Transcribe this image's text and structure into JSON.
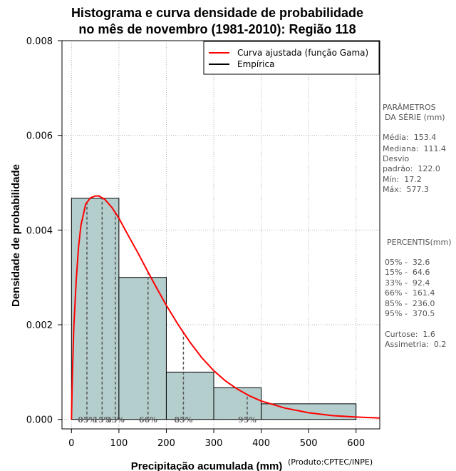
{
  "chart_data": {
    "type": "bar",
    "title_line1": "Histograma e curva densidade de probabilidade",
    "title_line2": "no mês de novembro (1981-2010): Região 118",
    "xlabel": "Precipitação acumulada (mm)",
    "ylabel": "Densidade de probabilidade",
    "xlim": [
      -20,
      650
    ],
    "ylim": [
      -0.0002,
      0.008
    ],
    "x_ticks": [
      0,
      100,
      200,
      300,
      400,
      500,
      600
    ],
    "x_tick_labels": [
      "0",
      "100",
      "200",
      "300",
      "400",
      "500",
      "600"
    ],
    "y_ticks": [
      0,
      0.002,
      0.004,
      0.006,
      0.008
    ],
    "y_tick_labels": [
      "0.000",
      "0.002",
      "0.004",
      "0.006",
      "0.008"
    ],
    "grid": true,
    "bins": [
      {
        "start": 0,
        "end": 100,
        "density": 0.00467
      },
      {
        "start": 100,
        "end": 200,
        "density": 0.003
      },
      {
        "start": 200,
        "end": 300,
        "density": 0.001
      },
      {
        "start": 300,
        "end": 400,
        "density": 0.00067
      },
      {
        "start": 400,
        "end": 600,
        "density": 0.00033
      }
    ],
    "bar_color": "#b4cdcd",
    "curve": {
      "name": "Curva ajustada (função Gama)",
      "color": "#ff0000",
      "points": [
        [
          0,
          0
        ],
        [
          2,
          0.00095
        ],
        [
          5,
          0.00195
        ],
        [
          10,
          0.00295
        ],
        [
          15,
          0.00365
        ],
        [
          20,
          0.0041
        ],
        [
          30,
          0.00455
        ],
        [
          40,
          0.00468
        ],
        [
          50,
          0.00472
        ],
        [
          58,
          0.00472
        ],
        [
          70,
          0.00465
        ],
        [
          85,
          0.00448
        ],
        [
          100,
          0.00425
        ],
        [
          120,
          0.00388
        ],
        [
          140,
          0.00352
        ],
        [
          160,
          0.00314
        ],
        [
          180,
          0.00277
        ],
        [
          200,
          0.00241
        ],
        [
          225,
          0.002
        ],
        [
          250,
          0.00163
        ],
        [
          275,
          0.0013
        ],
        [
          300,
          0.00103
        ],
        [
          325,
          0.00081
        ],
        [
          350,
          0.00064
        ],
        [
          375,
          0.0005
        ],
        [
          400,
          0.00039
        ],
        [
          450,
          0.00024
        ],
        [
          500,
          0.00014
        ],
        [
          550,
          8e-05
        ],
        [
          600,
          5e-05
        ],
        [
          650,
          3e-05
        ]
      ]
    },
    "legend": {
      "position": "top-right",
      "entries": [
        {
          "label": "Curva ajustada (função Gama)",
          "color": "#ff0000"
        },
        {
          "label": "Empírica",
          "color": "#000000"
        }
      ]
    },
    "percentile_markers": [
      {
        "label": "05%",
        "x": 32.6
      },
      {
        "label": "15%",
        "x": 64.6
      },
      {
        "label": "33%",
        "x": 92.4
      },
      {
        "label": "66%",
        "x": 161.4
      },
      {
        "label": "85%",
        "x": 236.0
      },
      {
        "label": "95%",
        "x": 370.5
      }
    ]
  },
  "parameters": {
    "heading_line1": "PARÂMETROS",
    "heading_line2": "DA SÉRIE (mm)",
    "items": [
      "Média:  153.4",
      "Mediana:  111.4",
      "Desvio",
      "padrão:  122.0",
      "Mín:  17.2",
      "Máx:  577.3"
    ]
  },
  "percentiles": {
    "heading": "PERCENTIS(mm)",
    "items": [
      "05% -  32.6",
      "15% -  64.6",
      "33% -  92.4",
      "66% -  161.4",
      "85% -  236.0",
      "95% -  370.5"
    ]
  },
  "stats": {
    "curtose": "Curtose:  1.6",
    "assimetria": "Assimetria:  0.2"
  },
  "credit": "(Produto:CPTEC/INPE)"
}
